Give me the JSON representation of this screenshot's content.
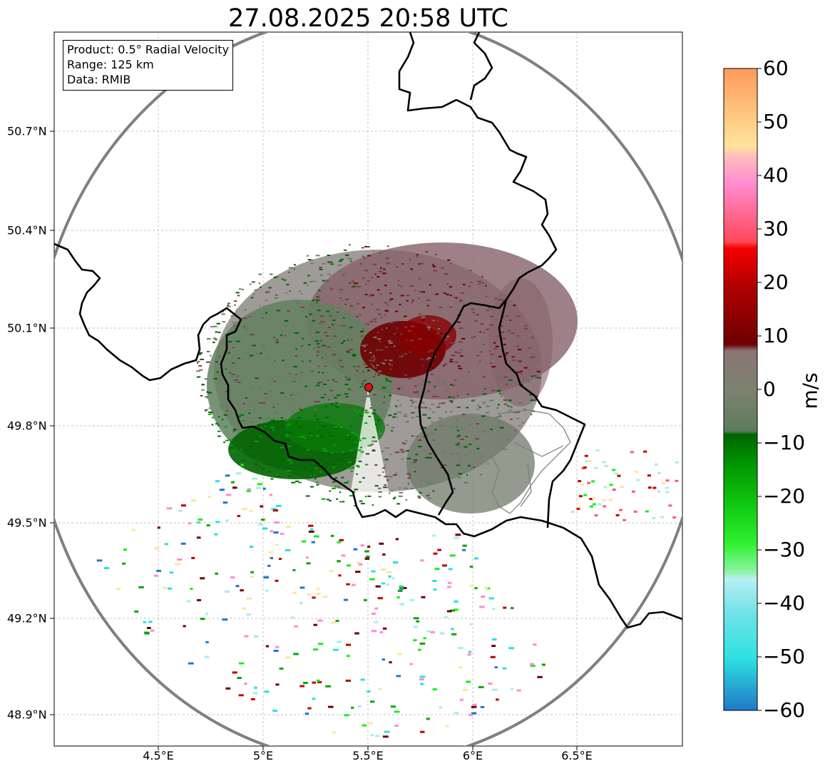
{
  "title": "27.08.2025 20:58 UTC",
  "info_box": {
    "product": "Product: 0.5° Radial Velocity",
    "range": "Range: 125 km",
    "data": "Data: RMIB"
  },
  "axes": {
    "lat_ticks": [
      "50.7°N",
      "50.4°N",
      "50.1°N",
      "49.8°N",
      "49.5°N",
      "49.2°N",
      "48.9°N"
    ],
    "lon_ticks": [
      "4.5°E",
      "5°E",
      "5.5°E",
      "6°E",
      "6.5°E"
    ]
  },
  "colorbar": {
    "unit": "m/s",
    "ticks": [
      "60",
      "50",
      "40",
      "30",
      "20",
      "10",
      "0",
      "−10",
      "−20",
      "−30",
      "−40",
      "−50",
      "−60"
    ],
    "range": [
      -60,
      60
    ],
    "colors": {
      "neg60": "#1f78c8",
      "neg50": "#2ee0e0",
      "neg40": "#a8ecee",
      "neg30": "#8ef5a8",
      "neg25": "#19ef19",
      "neg15": "#0aa40a",
      "neg5": "#006400",
      "zero_low": "#5e7c5e",
      "zero_high": "#8a7474",
      "pos8": "#7a3c44",
      "pos10": "#6e0000",
      "pos20": "#c00000",
      "pos28": "#f40000",
      "pos35": "#ff5a70",
      "pos42": "#ff8cd0",
      "pos46": "#ffc0c8",
      "pos50": "#ffe49a",
      "pos60": "#ff9a5a"
    }
  },
  "radar": {
    "site_marker_color": "#e01010",
    "range_ring_color": "#808080",
    "border_color": "#000000",
    "inner_border_color": "#7a7a7a"
  }
}
